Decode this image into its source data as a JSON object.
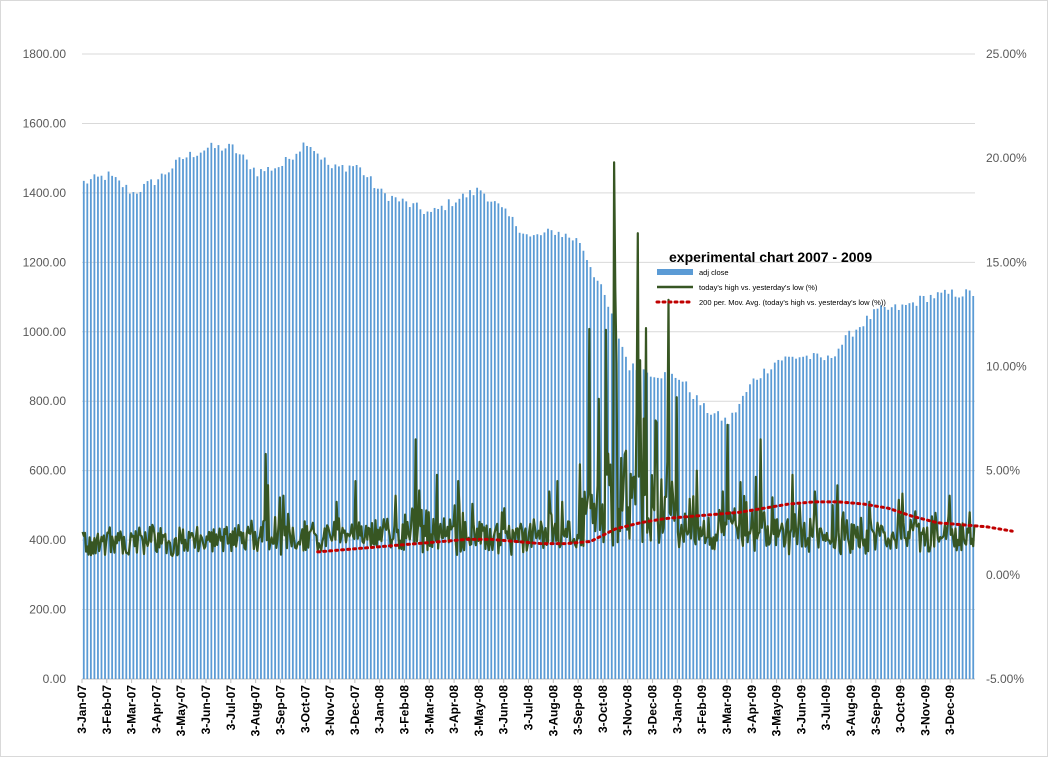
{
  "chart_data": {
    "type": "bar+line",
    "title": "experimental chart 2007 - 2009",
    "y_left": {
      "min": 0,
      "max": 1800,
      "step": 200,
      "ticks": [
        "0.00",
        "200.00",
        "400.00",
        "600.00",
        "800.00",
        "1000.00",
        "1200.00",
        "1400.00",
        "1600.00",
        "1800.00"
      ]
    },
    "y_right": {
      "min": -5,
      "max": 25,
      "step": 5,
      "ticks": [
        "-5.00%",
        "0.00%",
        "5.00%",
        "10.00%",
        "15.00%",
        "20.00%",
        "25.00%"
      ]
    },
    "x_ticks": [
      "3-Jan-07",
      "3-Feb-07",
      "3-Mar-07",
      "3-Apr-07",
      "3-May-07",
      "3-Jun-07",
      "3-Jul-07",
      "3-Aug-07",
      "3-Sep-07",
      "3-Oct-07",
      "3-Nov-07",
      "3-Dec-07",
      "3-Jan-08",
      "3-Feb-08",
      "3-Mar-08",
      "3-Apr-08",
      "3-May-08",
      "3-Jun-08",
      "3-Jul-08",
      "3-Aug-08",
      "3-Sep-08",
      "3-Oct-08",
      "3-Nov-08",
      "3-Dec-08",
      "3-Jan-09",
      "3-Feb-09",
      "3-Mar-09",
      "3-Apr-09",
      "3-May-09",
      "3-Jun-09",
      "3-Jul-09",
      "3-Aug-09",
      "3-Sep-09",
      "3-Oct-09",
      "3-Nov-09",
      "3-Dec-09"
    ],
    "grid": true,
    "legend_position": "upper-middle-right",
    "legend": [
      {
        "name": "adj close",
        "color": "#5b9bd5",
        "style": "bar"
      },
      {
        "name": "today's high vs. yesterday's low (%)",
        "color": "#375623",
        "style": "line"
      },
      {
        "name": "200 per. Mov. Avg. (today's high vs. yesterday's low (%))",
        "color": "#c00000",
        "style": "dotted"
      }
    ],
    "series": [
      {
        "name": "adj close",
        "axis": "left",
        "monthly_level": [
          1430,
          1450,
          1400,
          1440,
          1500,
          1530,
          1530,
          1460,
          1480,
          1550,
          1470,
          1480,
          1400,
          1370,
          1340,
          1380,
          1410,
          1340,
          1270,
          1290,
          1260,
          1100,
          900,
          880,
          870,
          780,
          740,
          860,
          920,
          930,
          920,
          1000,
          1060,
          1070,
          1100,
          1110
        ]
      },
      {
        "name": "today's high vs. yesterday's low (%)",
        "axis": "right",
        "baseline_pct": 1.5,
        "monthly_spike_pct": [
          1.8,
          2.0,
          2.4,
          2.0,
          2.0,
          2.3,
          2.6,
          5.8,
          3.8,
          2.5,
          3.5,
          4.5,
          3.8,
          6.5,
          4.8,
          4.5,
          3.0,
          3.2,
          4.0,
          4.5,
          11.8,
          19.8,
          16.4,
          13.2,
          5.0,
          4.0,
          7.2,
          6.5,
          4.8,
          4.0,
          4.3,
          3.5,
          3.6,
          3.9,
          3.8,
          3.0
        ]
      },
      {
        "name": "200 per. Mov. Avg. (today's high vs. yesterday's low (%))",
        "axis": "right",
        "start_index": 9,
        "monthly_values_pct": [
          1.1,
          1.2,
          1.3,
          1.4,
          1.5,
          1.6,
          1.7,
          1.7,
          1.6,
          1.5,
          1.5,
          1.6,
          2.2,
          2.5,
          2.7,
          2.8,
          2.9,
          3.0,
          3.2,
          3.4,
          3.5,
          3.5,
          3.4,
          3.2,
          2.8,
          2.5,
          2.4,
          2.3,
          2.1
        ]
      }
    ]
  }
}
